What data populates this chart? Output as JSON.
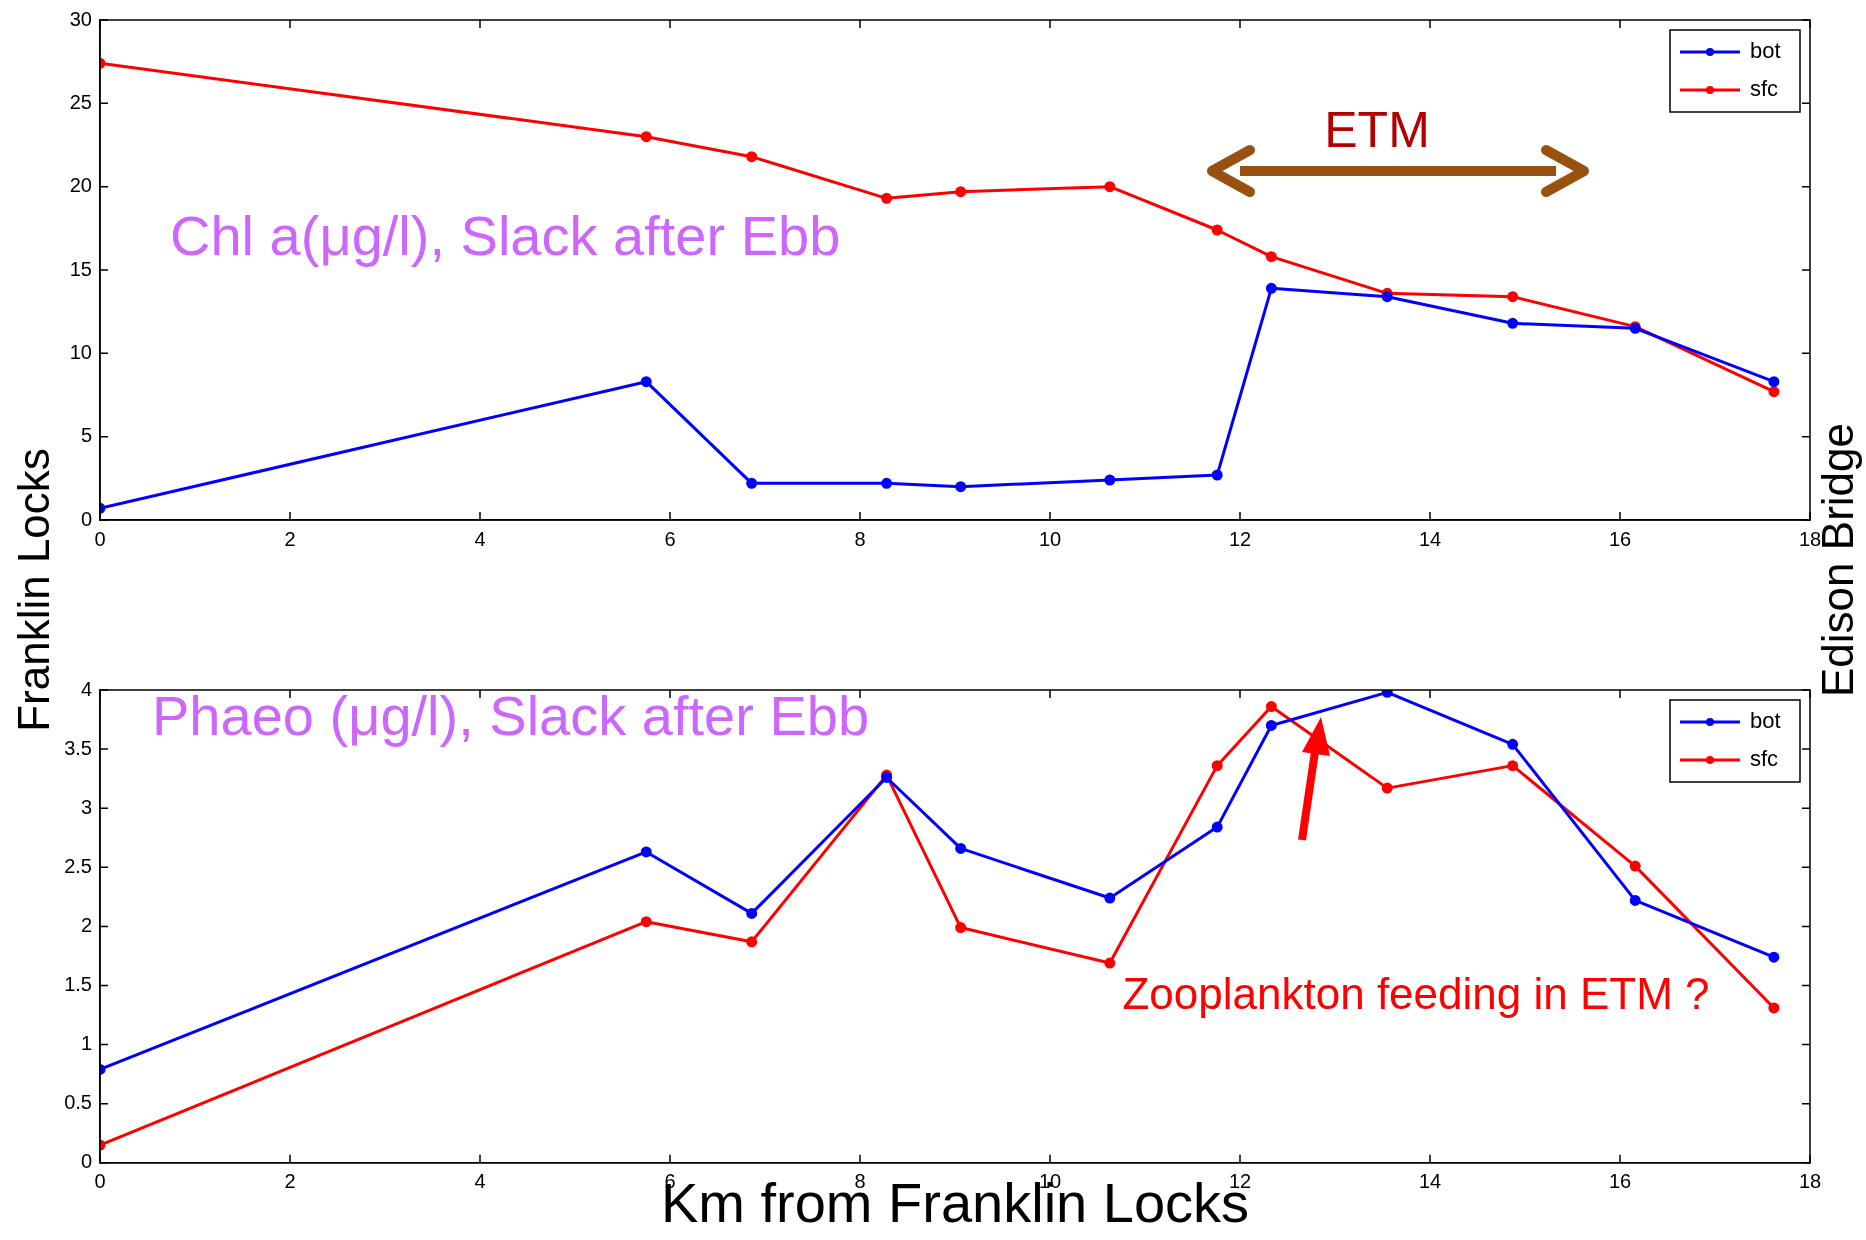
{
  "chart_data": [
    {
      "type": "line",
      "title": "Chl a(μg/l), Slack after Ebb",
      "ylabel": "Franklin Locks",
      "y2label": "Edison Bridge",
      "x": [
        0,
        5.75,
        6.86,
        8.28,
        9.06,
        10.63,
        11.76,
        12.33,
        13.55,
        14.87,
        16.16,
        17.62
      ],
      "series": [
        {
          "name": "bot",
          "color": "#0000ff",
          "values": [
            0.7,
            8.3,
            2.2,
            2.2,
            2.0,
            2.4,
            2.7,
            13.9,
            13.4,
            11.8,
            11.5,
            8.3
          ]
        },
        {
          "name": "sfc",
          "color": "#ff0000",
          "values": [
            27.4,
            23.0,
            21.8,
            19.3,
            19.7,
            20.0,
            17.4,
            15.8,
            13.6,
            13.4,
            11.6,
            7.7
          ]
        }
      ],
      "annotations": [
        "ETM"
      ],
      "xlim": [
        0,
        18
      ],
      "xticks": [
        0,
        2,
        4,
        6,
        8,
        10,
        12,
        14,
        16,
        18
      ],
      "ylim": [
        0,
        30
      ],
      "yticks": [
        0,
        5,
        10,
        15,
        20,
        25,
        30
      ],
      "grid": false,
      "legend": "top right",
      "marker": "circle",
      "line_style": "solid"
    },
    {
      "type": "line",
      "title": "Phaeo (μg/l), Slack after Ebb",
      "xlabel": "Km from Franklin Locks",
      "x": [
        0,
        5.75,
        6.86,
        8.28,
        9.06,
        10.63,
        11.76,
        12.33,
        13.55,
        14.87,
        16.16,
        17.62
      ],
      "series": [
        {
          "name": "bot",
          "color": "#0000ff",
          "values": [
            0.79,
            2.63,
            2.11,
            3.26,
            2.66,
            2.24,
            2.84,
            3.7,
            3.98,
            3.54,
            2.22,
            1.74
          ]
        },
        {
          "name": "sfc",
          "color": "#ff0000",
          "values": [
            0.15,
            2.04,
            1.87,
            3.28,
            1.99,
            1.69,
            3.36,
            3.86,
            3.17,
            3.36,
            2.51,
            1.31
          ]
        }
      ],
      "annotations": [
        "Zooplankton feeding in ETM ?"
      ],
      "xlim": [
        0,
        18
      ],
      "xticks": [
        0,
        2,
        4,
        6,
        8,
        10,
        12,
        14,
        16,
        18
      ],
      "ylim": [
        0,
        4
      ],
      "yticks": [
        0,
        0.5,
        1,
        1.5,
        2,
        2.5,
        3,
        3.5,
        4
      ],
      "grid": false,
      "legend": "top right",
      "marker": "circle",
      "line_style": "solid"
    }
  ]
}
